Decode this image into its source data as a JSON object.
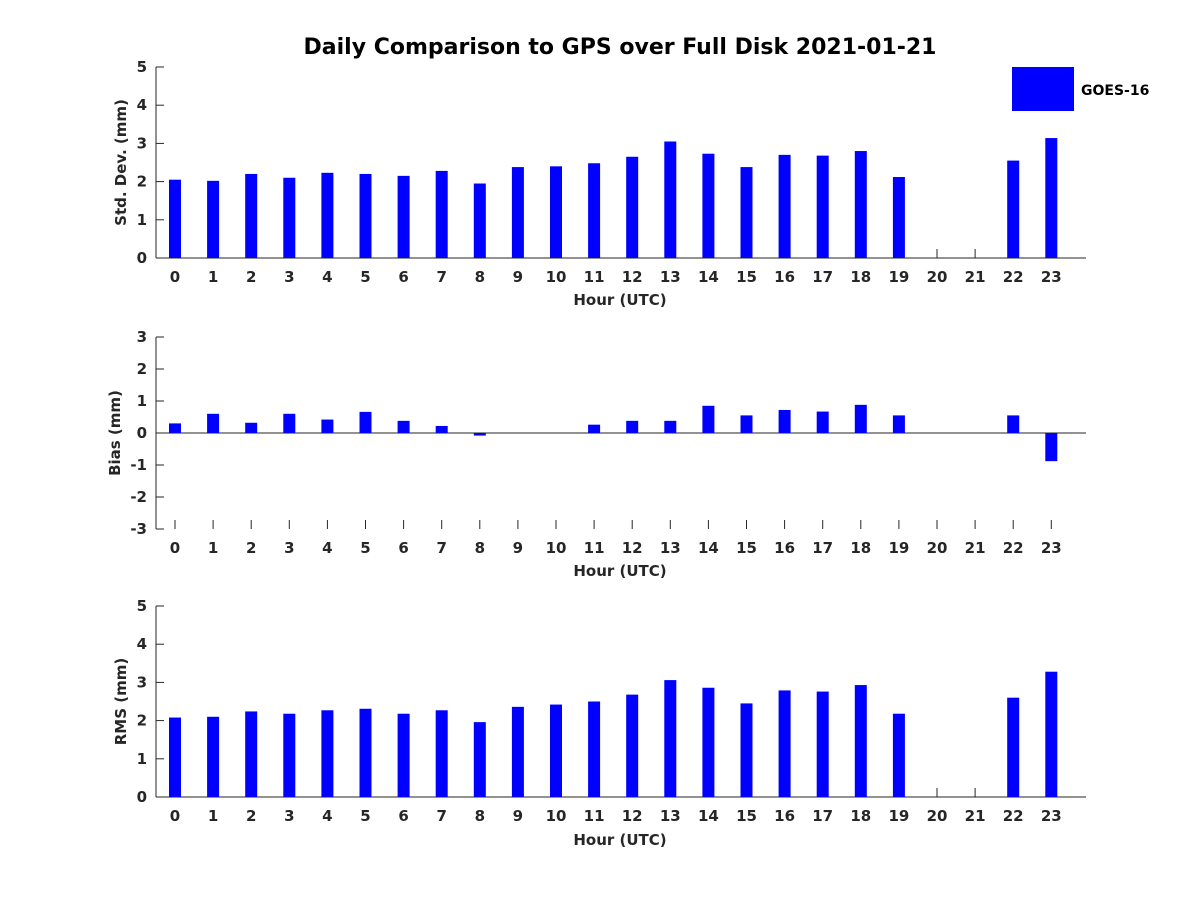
{
  "chart_data": [
    {
      "type": "bar",
      "title": "Daily Comparison to GPS over Full Disk 2021-01-21",
      "xlabel": "Hour (UTC)",
      "ylabel": "Std. Dev. (mm)",
      "ylim": [
        0,
        5
      ],
      "yticks": [
        "0",
        "1",
        "2",
        "3",
        "4",
        "5"
      ],
      "categories": [
        "0",
        "1",
        "2",
        "3",
        "4",
        "5",
        "6",
        "7",
        "8",
        "9",
        "10",
        "11",
        "12",
        "13",
        "14",
        "15",
        "16",
        "17",
        "18",
        "19",
        "20",
        "21",
        "22",
        "23"
      ],
      "series": [
        {
          "name": "GOES-16",
          "color": "#0000ff",
          "values": [
            2.05,
            2.02,
            2.2,
            2.1,
            2.23,
            2.2,
            2.15,
            2.28,
            1.95,
            2.38,
            2.4,
            2.48,
            2.65,
            3.05,
            2.73,
            2.38,
            2.7,
            2.68,
            2.8,
            2.12,
            null,
            null,
            2.55,
            3.14
          ]
        }
      ],
      "legend": "top-right",
      "grid": false
    },
    {
      "type": "bar",
      "xlabel": "Hour (UTC)",
      "ylabel": "Bias (mm)",
      "ylim": [
        -3,
        3
      ],
      "yticks": [
        "-3",
        "-2",
        "-1",
        "0",
        "1",
        "2",
        "3"
      ],
      "categories": [
        "0",
        "1",
        "2",
        "3",
        "4",
        "5",
        "6",
        "7",
        "8",
        "9",
        "10",
        "11",
        "12",
        "13",
        "14",
        "15",
        "16",
        "17",
        "18",
        "19",
        "20",
        "21",
        "22",
        "23"
      ],
      "series": [
        {
          "name": "GOES-16",
          "color": "#0000ff",
          "values": [
            0.3,
            0.6,
            0.32,
            0.6,
            0.42,
            0.66,
            0.38,
            0.22,
            -0.08,
            0.0,
            0.0,
            0.26,
            0.38,
            0.38,
            0.85,
            0.55,
            0.72,
            0.67,
            0.88,
            0.55,
            null,
            null,
            0.55,
            -0.88
          ]
        }
      ],
      "grid": false
    },
    {
      "type": "bar",
      "xlabel": "Hour (UTC)",
      "ylabel": "RMS (mm)",
      "ylim": [
        0,
        5
      ],
      "yticks": [
        "0",
        "1",
        "2",
        "3",
        "4",
        "5"
      ],
      "categories": [
        "0",
        "1",
        "2",
        "3",
        "4",
        "5",
        "6",
        "7",
        "8",
        "9",
        "10",
        "11",
        "12",
        "13",
        "14",
        "15",
        "16",
        "17",
        "18",
        "19",
        "20",
        "21",
        "22",
        "23"
      ],
      "series": [
        {
          "name": "GOES-16",
          "color": "#0000ff",
          "values": [
            2.08,
            2.1,
            2.24,
            2.18,
            2.27,
            2.31,
            2.18,
            2.27,
            1.96,
            2.36,
            2.42,
            2.5,
            2.68,
            3.06,
            2.86,
            2.45,
            2.79,
            2.76,
            2.93,
            2.18,
            null,
            null,
            2.6,
            3.28
          ]
        }
      ],
      "grid": false
    }
  ]
}
